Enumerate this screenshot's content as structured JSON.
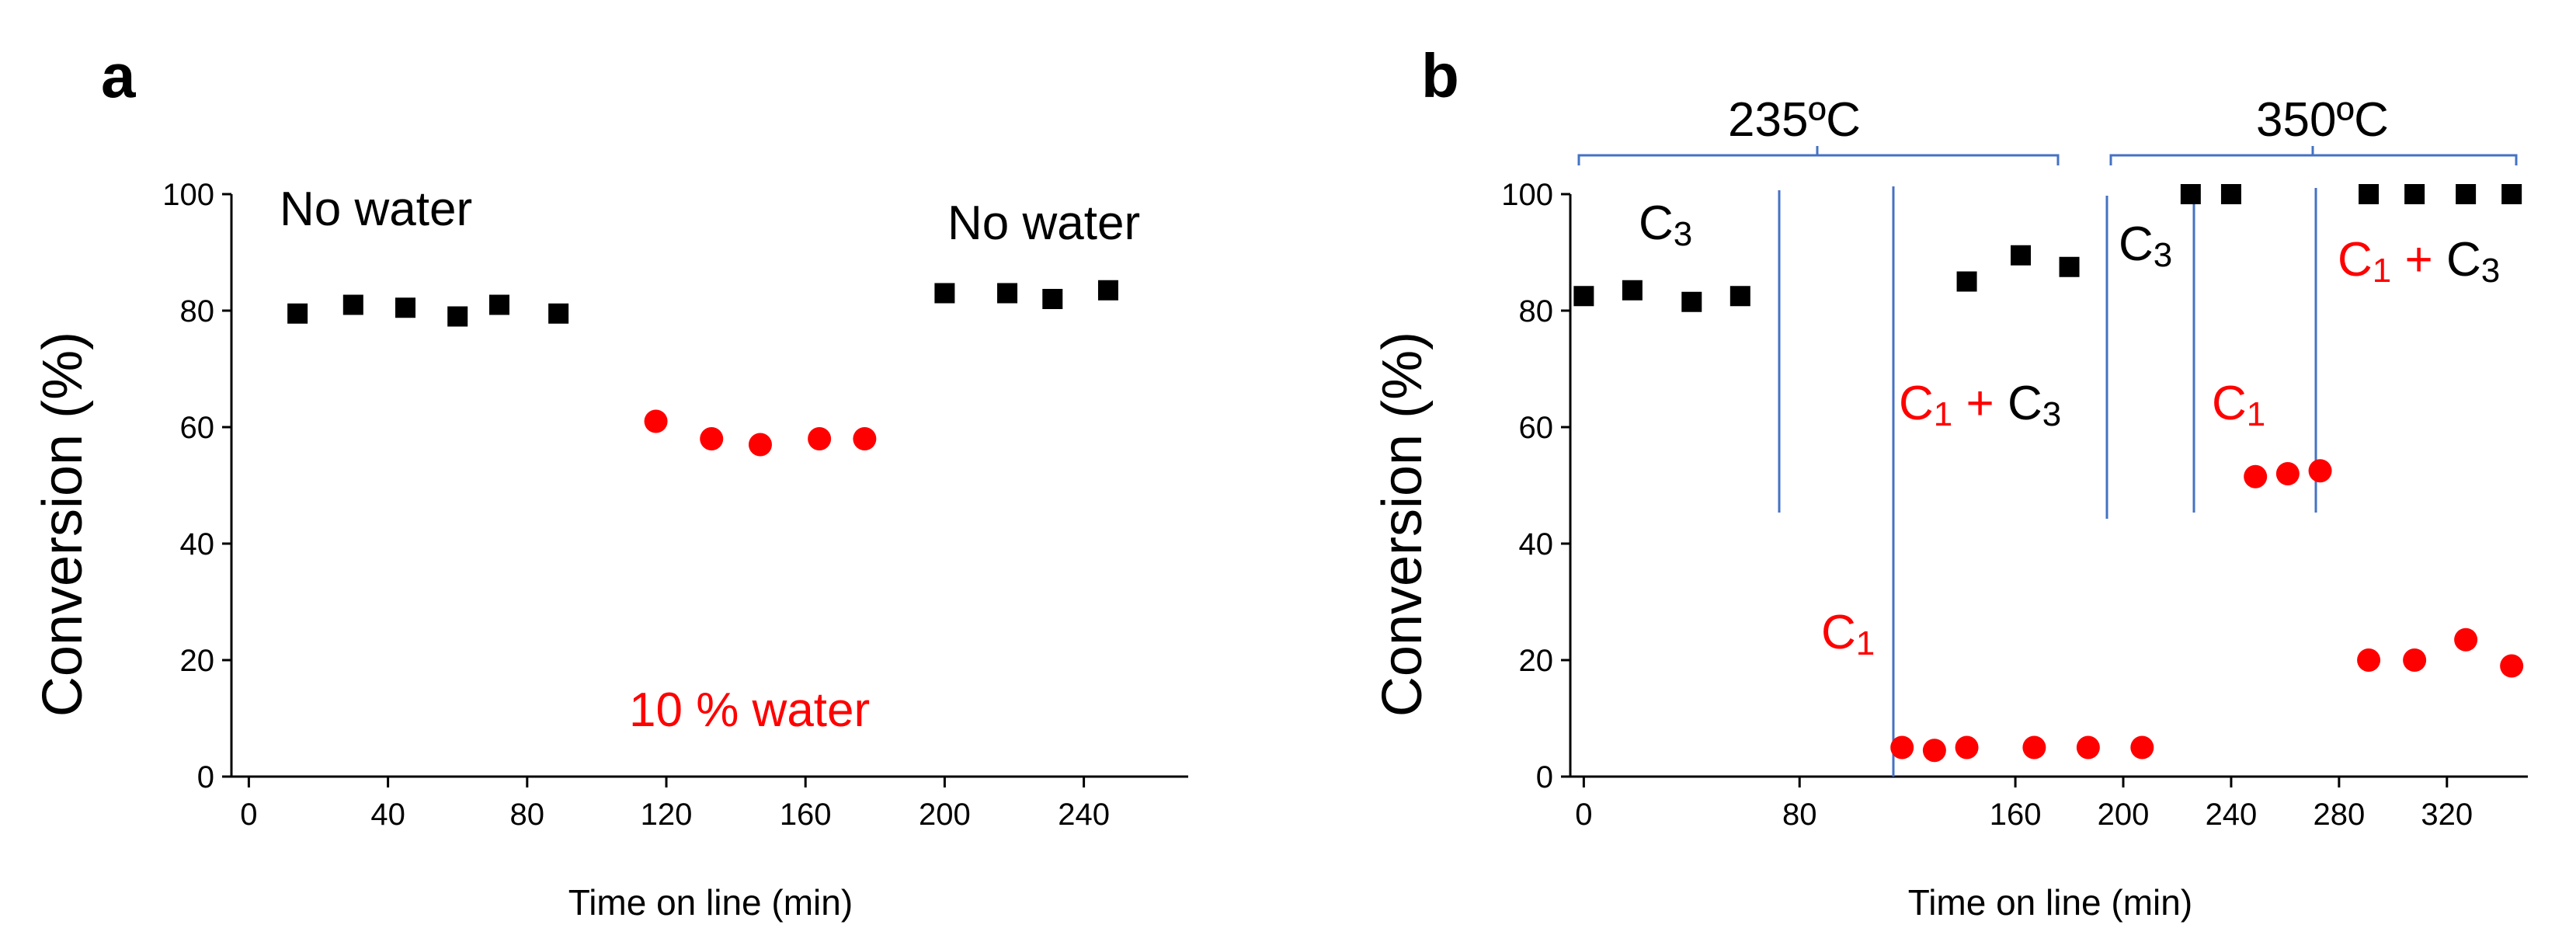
{
  "chart_data": [
    {
      "panel": "a",
      "type": "scatter",
      "xlabel": "Time on line (min)",
      "ylabel": "Conversion (%)",
      "xlim": [
        -5,
        270
      ],
      "ylim": [
        0,
        100
      ],
      "xticks": [
        0,
        40,
        80,
        120,
        160,
        200,
        240
      ],
      "yticks": [
        0,
        20,
        40,
        60,
        80,
        100
      ],
      "series": [
        {
          "name": "No water",
          "color": "#000000",
          "marker": "square",
          "x": [
            14,
            30,
            45,
            60,
            72,
            89
          ],
          "y": [
            79.5,
            81,
            80.5,
            79,
            81,
            79.5
          ]
        },
        {
          "name": "10 % water",
          "color": "#ff0000",
          "marker": "circle",
          "x": [
            117,
            133,
            147,
            164,
            177
          ],
          "y": [
            61,
            58,
            57,
            58,
            58
          ]
        },
        {
          "name": "No water",
          "color": "#000000",
          "marker": "square",
          "x": [
            200,
            218,
            231,
            247
          ],
          "y": [
            83,
            83,
            82,
            83.5
          ]
        }
      ],
      "annotations": [
        {
          "text": "No water",
          "color": "#000000"
        },
        {
          "text": "10 % water",
          "color": "#ff0000"
        },
        {
          "text": "No water",
          "color": "#000000"
        }
      ]
    },
    {
      "panel": "b",
      "type": "scatter",
      "xlabel": "Time on line (min)",
      "ylabel": "Conversion (%)",
      "xlim": [
        -5,
        350
      ],
      "ylim": [
        0,
        100
      ],
      "xticks": [
        0,
        80,
        160,
        200,
        240,
        280,
        320
      ],
      "yticks": [
        0,
        20,
        40,
        60,
        80,
        100
      ],
      "series": [
        {
          "name": "C3",
          "color": "#000000",
          "marker": "square",
          "x": [
            0,
            18,
            40,
            58,
            142,
            162,
            180,
            225,
            240,
            291,
            308,
            327,
            344
          ],
          "y": [
            82.5,
            83.5,
            81.5,
            82.5,
            85,
            89.5,
            87.5,
            100,
            100,
            100,
            100,
            100,
            100
          ]
        },
        {
          "name": "C1",
          "color": "#ff0000",
          "marker": "circle",
          "x": [
            118,
            130,
            142,
            167,
            187,
            207,
            249,
            261,
            273,
            291,
            308,
            327,
            344
          ],
          "y": [
            5,
            4.5,
            5,
            5,
            5,
            5,
            51.5,
            52,
            52.5,
            20,
            20,
            23.5,
            19
          ]
        }
      ],
      "temperature_groups": [
        {
          "label": "235ºC"
        },
        {
          "label": "350ºC"
        }
      ],
      "regions": [
        {
          "label_main": "C",
          "label_sub": "3",
          "color": "#000000"
        },
        {
          "label_main": "C",
          "label_sub": "1",
          "color": "#ff0000"
        },
        {
          "label_c1": "C",
          "sub1": "1",
          "plus": " + ",
          "label_c3": "C",
          "sub3": "3"
        },
        {
          "label_main": "C",
          "label_sub": "3",
          "color": "#000000"
        },
        {
          "label_main": "C",
          "label_sub": "1",
          "color": "#ff0000"
        },
        {
          "label_c1": "C",
          "sub1": "1",
          "plus": " + ",
          "label_c3": "C",
          "sub3": "3"
        }
      ]
    }
  ]
}
